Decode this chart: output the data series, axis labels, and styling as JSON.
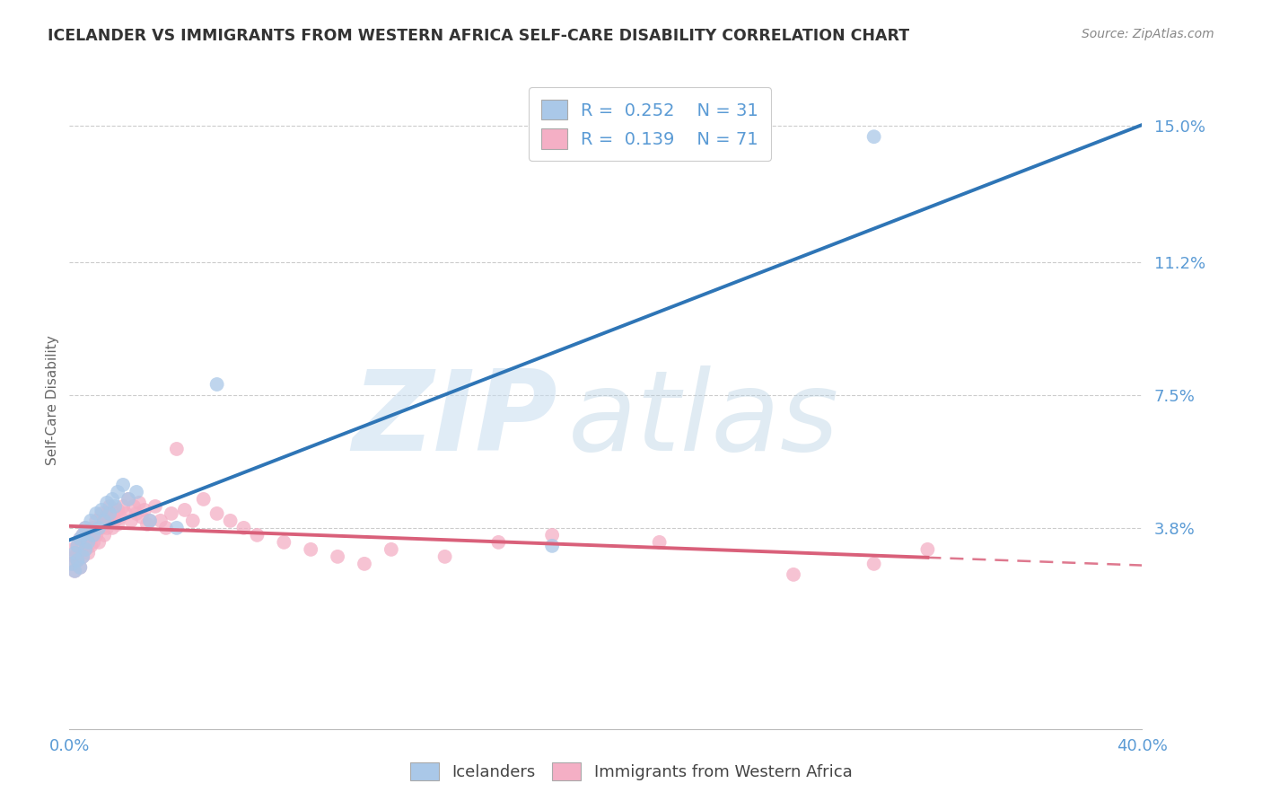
{
  "title": "ICELANDER VS IMMIGRANTS FROM WESTERN AFRICA SELF-CARE DISABILITY CORRELATION CHART",
  "source": "Source: ZipAtlas.com",
  "ylabel": "Self-Care Disability",
  "ytick_labels": [
    "15.0%",
    "11.2%",
    "7.5%",
    "3.8%"
  ],
  "ytick_values": [
    0.15,
    0.112,
    0.075,
    0.038
  ],
  "xtick_labels": [
    "0.0%",
    "40.0%"
  ],
  "xtick_values": [
    0.0,
    0.4
  ],
  "xlim": [
    0.0,
    0.4
  ],
  "ylim": [
    -0.018,
    0.165
  ],
  "legend_r1": "0.252",
  "legend_n1": "31",
  "legend_r2": "0.139",
  "legend_n2": "71",
  "color_blue": "#aac8e8",
  "color_pink": "#f4afc5",
  "color_blue_line": "#2e75b6",
  "color_pink_line": "#d9607a",
  "color_axis_label": "#5b9bd5",
  "color_title": "#333333",
  "color_source": "#888888",
  "color_grid": "#cccccc",
  "scatter_size": 130,
  "scatter_alpha": 0.75,
  "line_width": 2.8,
  "ice_x": [
    0.001,
    0.002,
    0.002,
    0.003,
    0.003,
    0.004,
    0.004,
    0.005,
    0.005,
    0.006,
    0.006,
    0.007,
    0.008,
    0.009,
    0.01,
    0.011,
    0.012,
    0.013,
    0.014,
    0.015,
    0.016,
    0.017,
    0.018,
    0.02,
    0.022,
    0.025,
    0.03,
    0.04,
    0.055,
    0.18,
    0.3
  ],
  "ice_y": [
    0.028,
    0.031,
    0.026,
    0.033,
    0.029,
    0.035,
    0.027,
    0.036,
    0.03,
    0.038,
    0.032,
    0.034,
    0.04,
    0.036,
    0.042,
    0.038,
    0.043,
    0.04,
    0.045,
    0.042,
    0.046,
    0.044,
    0.048,
    0.05,
    0.046,
    0.048,
    0.04,
    0.038,
    0.078,
    0.033,
    0.147
  ],
  "imm_x": [
    0.001,
    0.001,
    0.002,
    0.002,
    0.003,
    0.003,
    0.004,
    0.004,
    0.005,
    0.005,
    0.006,
    0.006,
    0.007,
    0.007,
    0.008,
    0.008,
    0.009,
    0.009,
    0.01,
    0.01,
    0.011,
    0.011,
    0.012,
    0.012,
    0.013,
    0.013,
    0.014,
    0.014,
    0.015,
    0.015,
    0.016,
    0.016,
    0.017,
    0.018,
    0.018,
    0.019,
    0.02,
    0.021,
    0.022,
    0.023,
    0.024,
    0.025,
    0.026,
    0.027,
    0.028,
    0.029,
    0.03,
    0.032,
    0.034,
    0.036,
    0.038,
    0.04,
    0.043,
    0.046,
    0.05,
    0.055,
    0.06,
    0.065,
    0.07,
    0.08,
    0.09,
    0.1,
    0.11,
    0.12,
    0.14,
    0.16,
    0.18,
    0.22,
    0.27,
    0.3,
    0.32
  ],
  "imm_y": [
    0.028,
    0.032,
    0.03,
    0.026,
    0.033,
    0.029,
    0.035,
    0.027,
    0.036,
    0.03,
    0.038,
    0.032,
    0.035,
    0.031,
    0.037,
    0.033,
    0.038,
    0.034,
    0.04,
    0.036,
    0.038,
    0.034,
    0.042,
    0.038,
    0.04,
    0.036,
    0.042,
    0.038,
    0.04,
    0.044,
    0.038,
    0.042,
    0.04,
    0.043,
    0.039,
    0.041,
    0.044,
    0.042,
    0.046,
    0.04,
    0.044,
    0.042,
    0.045,
    0.041,
    0.043,
    0.039,
    0.04,
    0.044,
    0.04,
    0.038,
    0.042,
    0.06,
    0.043,
    0.04,
    0.046,
    0.042,
    0.04,
    0.038,
    0.036,
    0.034,
    0.032,
    0.03,
    0.028,
    0.032,
    0.03,
    0.034,
    0.036,
    0.034,
    0.025,
    0.028,
    0.032
  ]
}
